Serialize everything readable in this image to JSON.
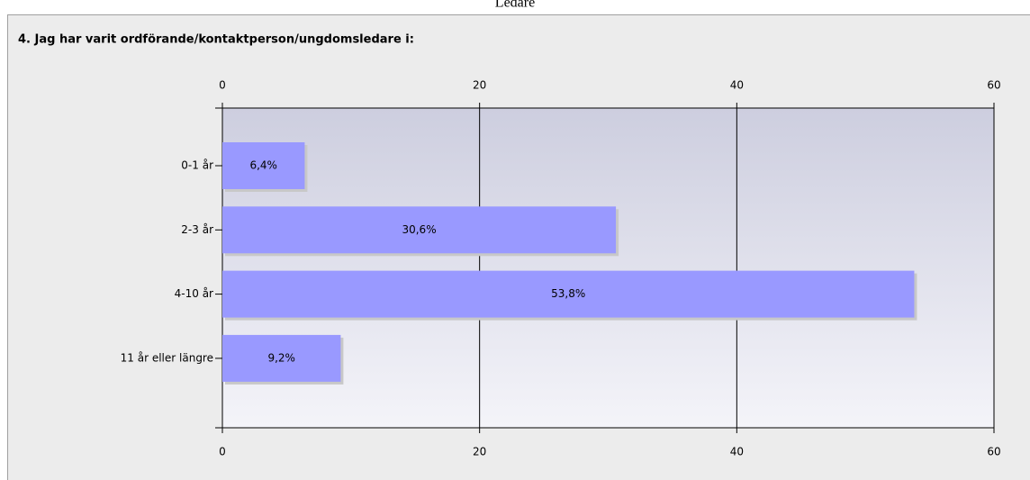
{
  "page_title": "Ledare",
  "chart_data": {
    "type": "hbar",
    "title": "4. Jag har varit ordförande/kontaktperson/ungdomsledare i:",
    "categories": [
      "0-1 år",
      "2-3 år",
      "4-10 år",
      "11 år eller längre"
    ],
    "values": [
      6.4,
      30.6,
      53.8,
      9.2
    ],
    "value_labels": [
      "6,4%",
      "30,6%",
      "53,8%",
      "9,2%"
    ],
    "color": "#9999ff",
    "xlim": [
      0,
      60
    ],
    "xticks": [
      0,
      20,
      40,
      60
    ],
    "grid": true
  }
}
